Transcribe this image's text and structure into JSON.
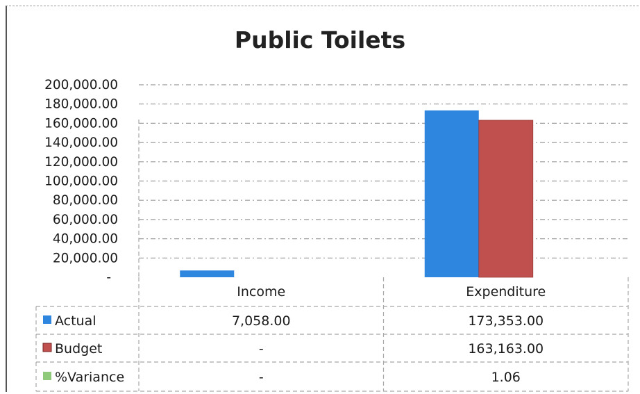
{
  "chart_data": {
    "type": "bar",
    "title": "Public Toilets",
    "categories": [
      "Income",
      "Expenditure"
    ],
    "ylim": [
      0,
      200000
    ],
    "yticks": [
      0,
      20000,
      40000,
      60000,
      80000,
      100000,
      120000,
      140000,
      160000,
      180000,
      200000
    ],
    "ytick_labels": [
      "-",
      "20,000.00",
      "40,000.00",
      "60,000.00",
      "80,000.00",
      "100,000.00",
      "120,000.00",
      "140,000.00",
      "160,000.00",
      "180,000.00",
      "200,000.00"
    ],
    "grid": true,
    "legend": "data-table",
    "series": [
      {
        "name": "Actual",
        "color": "#2e86de",
        "values": [
          7058,
          173353
        ],
        "labels": [
          "7,058.00",
          "173,353.00"
        ]
      },
      {
        "name": "Budget",
        "color": "#c0504d",
        "values": [
          0,
          163163
        ],
        "labels": [
          "-",
          "163,163.00"
        ]
      },
      {
        "name": "%Variance",
        "color": "#8fc97a",
        "values": [
          0,
          1.06
        ],
        "labels": [
          "-",
          "1.06"
        ]
      }
    ]
  }
}
